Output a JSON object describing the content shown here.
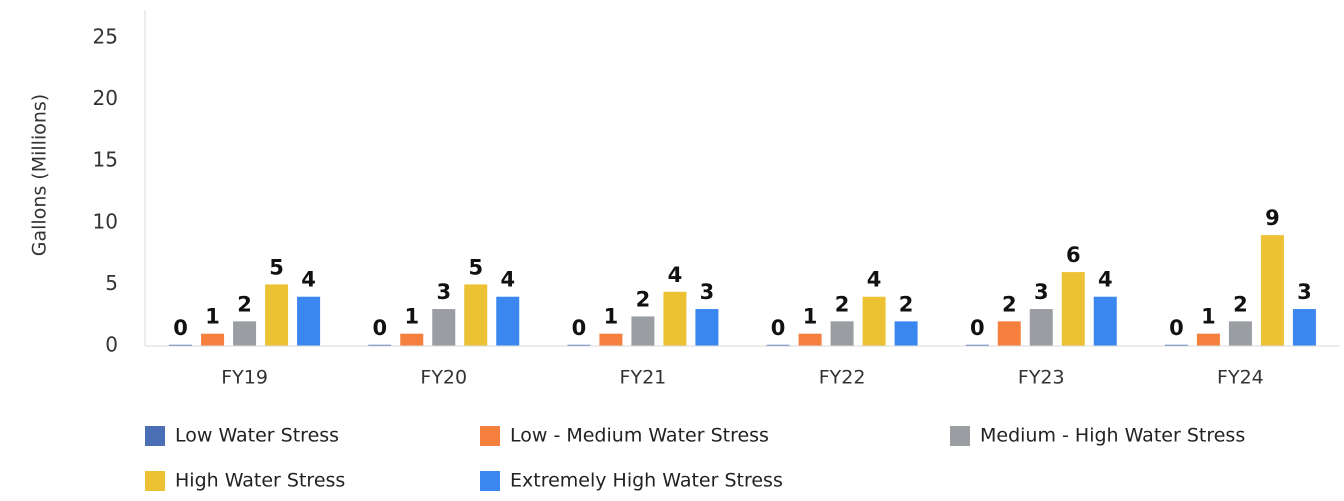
{
  "chart_data": {
    "type": "bar",
    "y_label": "Gallons (Millions)",
    "categories": [
      "FY19",
      "FY20",
      "FY21",
      "FY22",
      "FY23",
      "FY24"
    ],
    "series": [
      {
        "name": "Low Water Stress",
        "color": "#4a6fb5",
        "values": [
          0.1,
          0.1,
          0.1,
          0.1,
          0.1,
          0.1
        ],
        "value_labels": [
          "0",
          "0",
          "0",
          "0",
          "0",
          "0"
        ]
      },
      {
        "name": "Low - Medium Water Stress",
        "color": "#f5803e",
        "values": [
          1,
          1,
          1,
          1,
          2,
          1
        ]
      },
      {
        "name": "Medium - High Water Stress",
        "color": "#9a9ea3",
        "values": [
          2,
          3,
          2.4,
          2,
          3,
          2
        ],
        "value_labels": [
          "2",
          "3",
          "2",
          "2",
          "3",
          "2"
        ]
      },
      {
        "name": "High Water Stress",
        "color": "#ecc134",
        "values": [
          5,
          5,
          4.4,
          4,
          6,
          9
        ],
        "value_labels": [
          "5",
          "5",
          "4",
          "4",
          "6",
          "9"
        ]
      },
      {
        "name": "Extremely High Water Stress",
        "color": "#3b87f0",
        "values": [
          4,
          4,
          3,
          2,
          4,
          3
        ]
      }
    ],
    "ylim": [
      0,
      25
    ],
    "yticks": [
      0,
      5,
      10,
      15,
      20,
      25
    ],
    "legend": "bottom"
  }
}
